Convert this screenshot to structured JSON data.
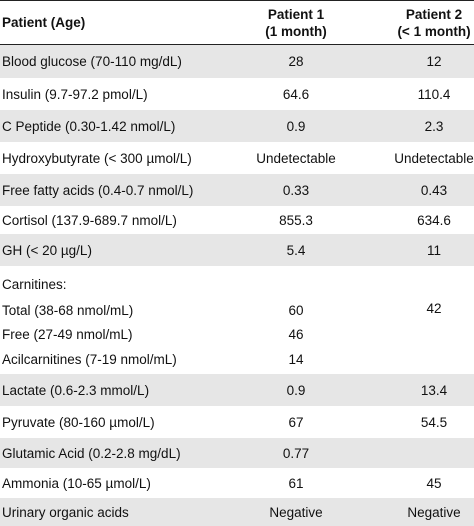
{
  "header": {
    "label": "Patient (Age)",
    "p1_line1": "Patient 1",
    "p1_line2": "(1 month)",
    "p2_line1": "Patient 2",
    "p2_line2": "(< 1 month)"
  },
  "rows": [
    {
      "label": "Blood glucose (70-110 mg/dL)",
      "p1": "28",
      "p2": "12"
    },
    {
      "label": "Insulin (9.7-97.2 pmol/L)",
      "p1": "64.6",
      "p2": "110.4"
    },
    {
      "label": "C Peptide (0.30-1.42 nmol/L)",
      "p1": "0.9",
      "p2": "2.3"
    },
    {
      "label": "Hydroxybutyrate (< 300 µmol/L)",
      "p1": "Undetectable",
      "p2": "Undetectable"
    },
    {
      "label": "Free fatty acids (0.4-0.7 nmol/L)",
      "p1": "0.33",
      "p2": "0.43"
    },
    {
      "label": "Cortisol (137.9-689.7 nmol/L)",
      "p1": "855.3",
      "p2": "634.6"
    },
    {
      "label": "GH (< 20 µg/L)",
      "p1": "5.4",
      "p2": "11"
    },
    {
      "label": "Carnitines:",
      "p1": "",
      "p2": ""
    },
    {
      "label": "Total (38-68 nmol/mL)",
      "p1": "60",
      "p2": "42"
    },
    {
      "label": "Free (27-49 nmol/mL)",
      "p1": "46",
      "p2": ""
    },
    {
      "label": "Acilcarnitines (7-19 nmol/mL)",
      "p1": "14",
      "p2": ""
    },
    {
      "label": "Lactate (0.6-2.3 mmol/L)",
      "p1": "0.9",
      "p2": "13.4"
    },
    {
      "label": "Pyruvate (80-160 µmol/L)",
      "p1": "67",
      "p2": "54.5"
    },
    {
      "label": "Glutamic Acid (0.2-2.8 mg/dL)",
      "p1": "0.77",
      "p2": ""
    },
    {
      "label": "Ammonia (10-65 µmol/L)",
      "p1": "61",
      "p2": "45"
    },
    {
      "label": "Urinary organic acids",
      "p1": "Negative",
      "p2": "Negative"
    }
  ]
}
